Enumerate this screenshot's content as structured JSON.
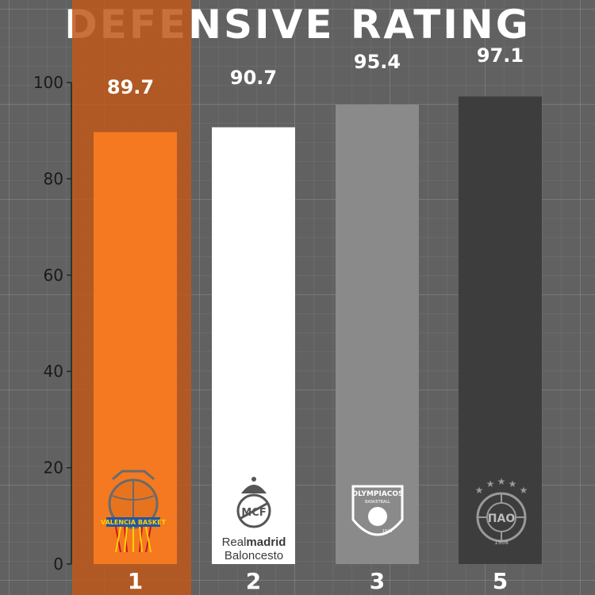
{
  "chart_data": {
    "type": "bar",
    "title": "DEFENSIVE RATING",
    "xlabel": "",
    "ylabel": "",
    "categories": [
      "1",
      "2",
      "3",
      "5"
    ],
    "values": [
      89.7,
      90.7,
      95.4,
      97.1
    ],
    "value_labels": [
      "89.7",
      "90.7",
      "95.4",
      "97.1"
    ],
    "ylim": [
      0,
      100
    ],
    "yticks": [
      "0",
      "20",
      "40",
      "60",
      "80",
      "100"
    ],
    "grid": true,
    "highlighted_category": "1",
    "bar_colors": [
      "#f47920",
      "#ffffff",
      "#8a8a8a",
      "#3d3d3d"
    ],
    "highlight_color": "#c0581a",
    "team_logos": [
      "valencia-basket-logo",
      "real-madrid-logo",
      "olympiacos-logo",
      "panathinaikos-logo"
    ],
    "logo_text": {
      "valencia": "VALENCIA BASKET",
      "real_madrid_line1_a": "Real",
      "real_madrid_line1_b": "madrid",
      "real_madrid_line2": "Baloncesto",
      "olympiacos": "OLYMPIACOS",
      "olympiacos_sub": "BASKETBALL",
      "olympiacos_year": "1925",
      "panathinaikos_letters": "ΠΑΟ",
      "panathinaikos_year": "1908"
    }
  }
}
